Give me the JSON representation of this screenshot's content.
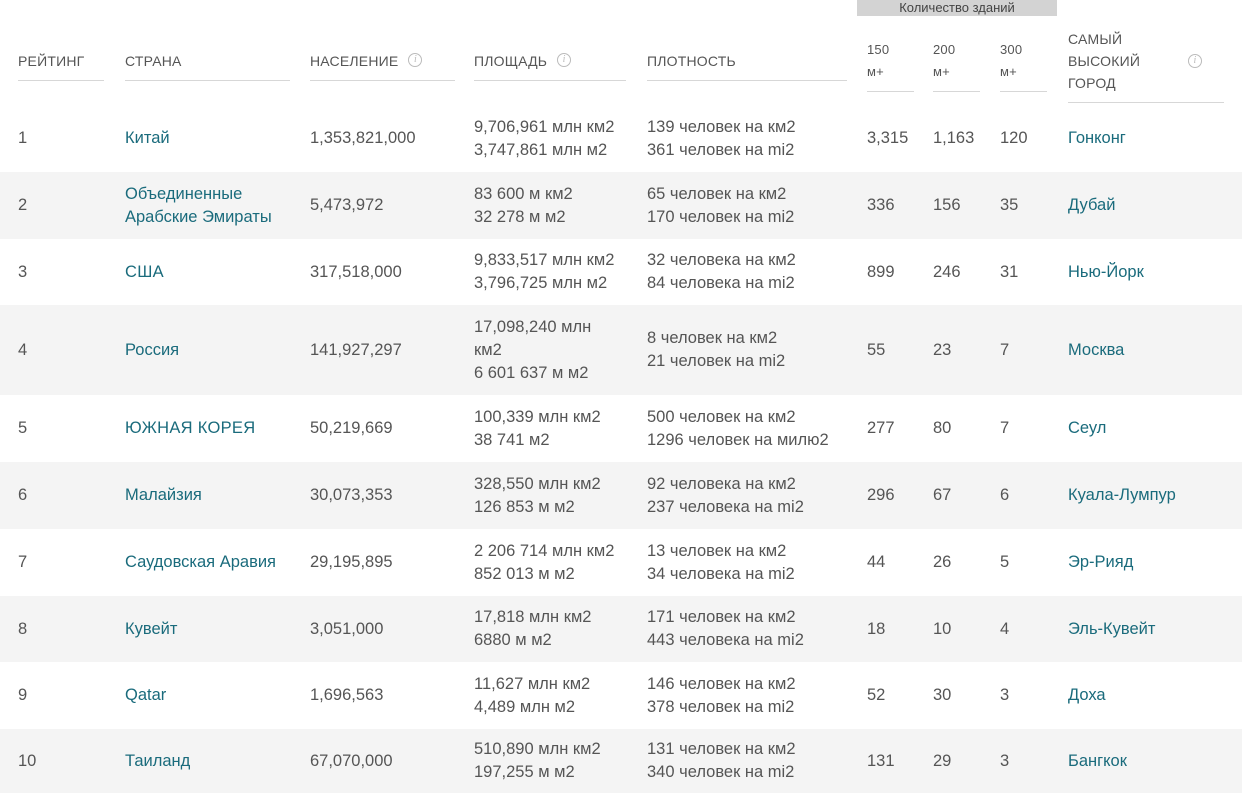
{
  "group_header": "Количество зданий",
  "headers": {
    "rank": "РЕЙТИНГ",
    "country": "СТРАНА",
    "population": "НАСЕЛЕНИЕ",
    "area": "ПЛОЩАДЬ",
    "density": "ПЛОТНОСТЬ",
    "b150_line1": "150",
    "b150_line2": "м+",
    "b200_line1": "200",
    "b200_line2": "м+",
    "b300_line1": "300",
    "b300_line2": "м+",
    "city_line1": "САМЫЙ",
    "city_line2": "ВЫСОКИЙ",
    "city_line3": "ГОРОД",
    "info_glyph": "i"
  },
  "rows": [
    {
      "rank": "1",
      "country": "Китай",
      "population": "1,353,821,000",
      "area1": "9,706,961 млн км2",
      "area2": "3,747,861 млн м2",
      "area3": "",
      "density1": "139 человек на км2",
      "density2": "361 человек на mi2",
      "b150": "3,315",
      "b200": "1,163",
      "b300": "120",
      "city": "Гонконг"
    },
    {
      "rank": "2",
      "country": "Объединенные",
      "country2": "Арабские Эмираты",
      "population": "5,473,972",
      "area1": "83 600 м км2",
      "area2": "32 278 м м2",
      "area3": "",
      "density1": "65 человек на км2",
      "density2": "170 человек на mi2",
      "b150": "336",
      "b200": "156",
      "b300": "35",
      "city": "Дубай"
    },
    {
      "rank": "3",
      "country": "США",
      "population": "317,518,000",
      "area1": "9,833,517 млн км2",
      "area2": "3,796,725 млн м2",
      "area3": "",
      "density1": "32 человека на км2",
      "density2": "84 человека на mi2",
      "b150": "899",
      "b200": "246",
      "b300": "31",
      "city": "Нью-Йорк"
    },
    {
      "rank": "4",
      "country": "Россия",
      "population": "141,927,297",
      "area1": "17,098,240 млн",
      "area2": "км2",
      "area3": "6 601 637 м м2",
      "density1": "8 человек на км2",
      "density2": "21 человек на mi2",
      "b150": "55",
      "b200": "23",
      "b300": "7",
      "city": "Москва"
    },
    {
      "rank": "5",
      "country": "ЮЖНАЯ КОРЕЯ",
      "population": "50,219,669",
      "area1": "100,339 млн км2",
      "area2": "38 741 м2",
      "area3": "",
      "density1": "500 человек на км2",
      "density2": "1296 человек на милю2",
      "b150": "277",
      "b200": "80",
      "b300": "7",
      "city": "Сеул"
    },
    {
      "rank": "6",
      "country": "Малайзия",
      "population": "30,073,353",
      "area1": "328,550 млн км2",
      "area2": "126 853 м м2",
      "area3": "",
      "density1": "92 человека на км2",
      "density2": "237 человека на mi2",
      "b150": "296",
      "b200": "67",
      "b300": "6",
      "city": "Куала-Лумпур"
    },
    {
      "rank": "7",
      "country": "Саудовская Аравия",
      "population": "29,195,895",
      "area1": "2 206 714 млн км2",
      "area2": "852 013 м м2",
      "area3": "",
      "density1": "13 человек на км2",
      "density2": "34 человека на mi2",
      "b150": "44",
      "b200": "26",
      "b300": "5",
      "city": "Эр-Рияд"
    },
    {
      "rank": "8",
      "country": "Кувейт",
      "population": "3,051,000",
      "area1": "17,818 млн км2",
      "area2": "6880 м м2",
      "area3": "",
      "density1": "171 человек на км2",
      "density2": "443 человека на mi2",
      "b150": "18",
      "b200": "10",
      "b300": "4",
      "city": "Эль-Кувейт"
    },
    {
      "rank": "9",
      "country": "Qatar",
      "population": "1,696,563",
      "area1": "11,627 млн км2",
      "area2": "4,489 млн м2",
      "area3": "",
      "density1": "146 человек на км2",
      "density2": "378 человек на mi2",
      "b150": "52",
      "b200": "30",
      "b300": "3",
      "city": "Доха"
    },
    {
      "rank": "10",
      "country": "Таиланд",
      "population": "67,070,000",
      "area1": "510,890 млн км2",
      "area2": "197,255 м м2",
      "area3": "",
      "density1": "131 человек на км2",
      "density2": "340 человек на mi2",
      "b150": "131",
      "b200": "29",
      "b300": "3",
      "city": "Бангкок"
    }
  ],
  "colors": {
    "link": "#1a6b7c",
    "text": "#555555",
    "stripe": "#f4f4f4",
    "group_header_bg": "#d3d3d3"
  }
}
